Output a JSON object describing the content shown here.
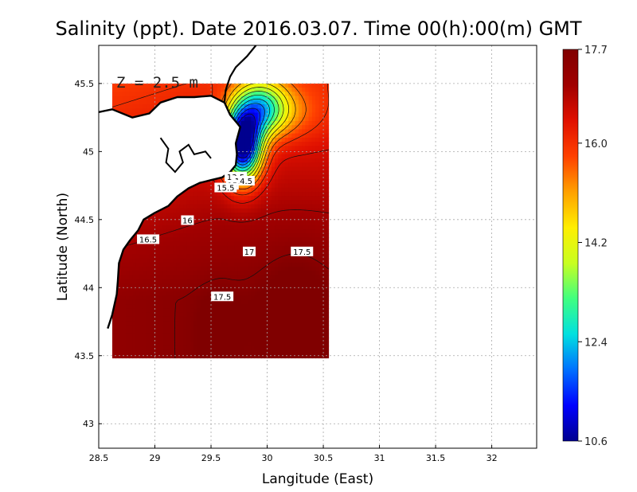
{
  "title": "Salinity (ppt). Date 2016.03.07. Time 00(h):00(m) GMT",
  "depth_label": "Z = 2.5 m",
  "xlabel": "Langitude (East)",
  "ylabel": "Latitude (North)",
  "chart_data": {
    "type": "heatmap",
    "variable": "Salinity (ppt)",
    "x_ticks": [
      "28.5",
      "29",
      "29.5",
      "30",
      "30.5",
      "31",
      "31.5",
      "32"
    ],
    "y_ticks": [
      "43",
      "43.5",
      "44",
      "44.5",
      "45",
      "45.5"
    ],
    "xlim": [
      28.5,
      32.4
    ],
    "ylim": [
      42.82,
      45.78
    ],
    "data_xlim": [
      28.62,
      30.55
    ],
    "data_ylim": [
      43.48,
      45.5
    ],
    "colorbar": {
      "min": 10.6,
      "max": 17.7,
      "ticks": [
        "17.7",
        "16.0",
        "14.2",
        "12.4",
        "10.6"
      ],
      "colors": [
        "#00008f",
        "#0000ff",
        "#0070ff",
        "#00e0e0",
        "#40ff80",
        "#c8ff20",
        "#ffee00",
        "#ffa000",
        "#ff4000",
        "#e01000",
        "#a00000",
        "#800000"
      ]
    },
    "contour_labels": [
      {
        "text": "13.5",
        "x": 29.72,
        "y": 44.81
      },
      {
        "text": "14.5",
        "x": 29.79,
        "y": 44.78
      },
      {
        "text": "15",
        "x": 29.69,
        "y": 44.75
      },
      {
        "text": "15.5",
        "x": 29.63,
        "y": 44.73
      },
      {
        "text": "16",
        "x": 29.29,
        "y": 44.49
      },
      {
        "text": "16.5",
        "x": 28.94,
        "y": 44.35
      },
      {
        "text": "17",
        "x": 29.84,
        "y": 44.26
      },
      {
        "text": "17.5",
        "x": 30.31,
        "y": 44.26
      },
      {
        "text": "17.5",
        "x": 29.6,
        "y": 43.93
      }
    ]
  }
}
